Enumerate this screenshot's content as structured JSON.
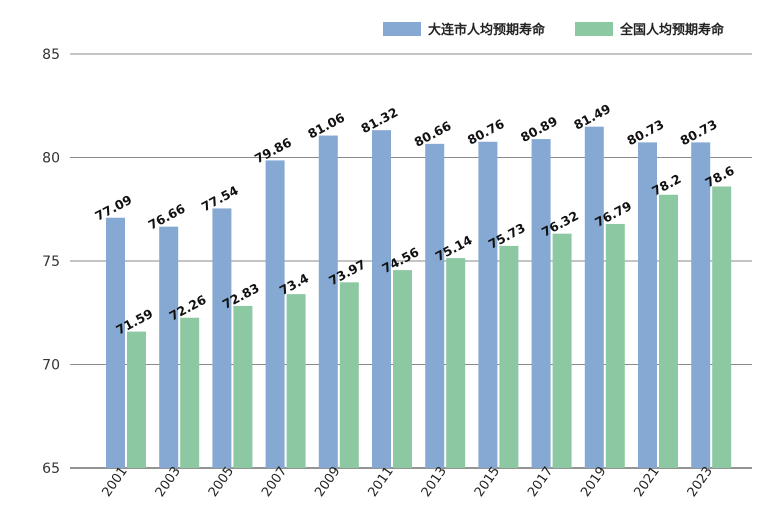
{
  "chart_data": {
    "type": "bar",
    "title": "",
    "xlabel": "",
    "ylabel": "",
    "ylim": [
      65,
      85
    ],
    "yticks": [
      65,
      70,
      75,
      80,
      85
    ],
    "grid": true,
    "legend_position": "top-right",
    "categories": [
      "2001",
      "2003",
      "2005",
      "2007",
      "2009",
      "2011",
      "2013",
      "2015",
      "2017",
      "2019",
      "2021",
      "2023"
    ],
    "series": [
      {
        "name": "大连市人均预期寿命",
        "color": "#86a9d3",
        "values": [
          77.09,
          76.66,
          77.54,
          79.86,
          81.06,
          81.32,
          80.66,
          80.76,
          80.89,
          81.49,
          80.73,
          80.73
        ],
        "labels": [
          "77.09",
          "76.66",
          "77.54",
          "79.86",
          "81.06",
          "81.32",
          "80.66",
          "80.76",
          "80.89",
          "81.49",
          "80.73",
          "80.73"
        ]
      },
      {
        "name": "全国人均预期寿命",
        "color": "#8cc9a2",
        "values": [
          71.59,
          72.26,
          72.83,
          73.4,
          73.97,
          74.56,
          75.14,
          75.73,
          76.32,
          76.79,
          78.2,
          78.6
        ],
        "labels": [
          "71.59",
          "72.26",
          "72.83",
          "73.4",
          "73.97",
          "74.56",
          "75.14",
          "75.73",
          "76.32",
          "76.79",
          "78.2",
          "78.6"
        ]
      }
    ]
  }
}
